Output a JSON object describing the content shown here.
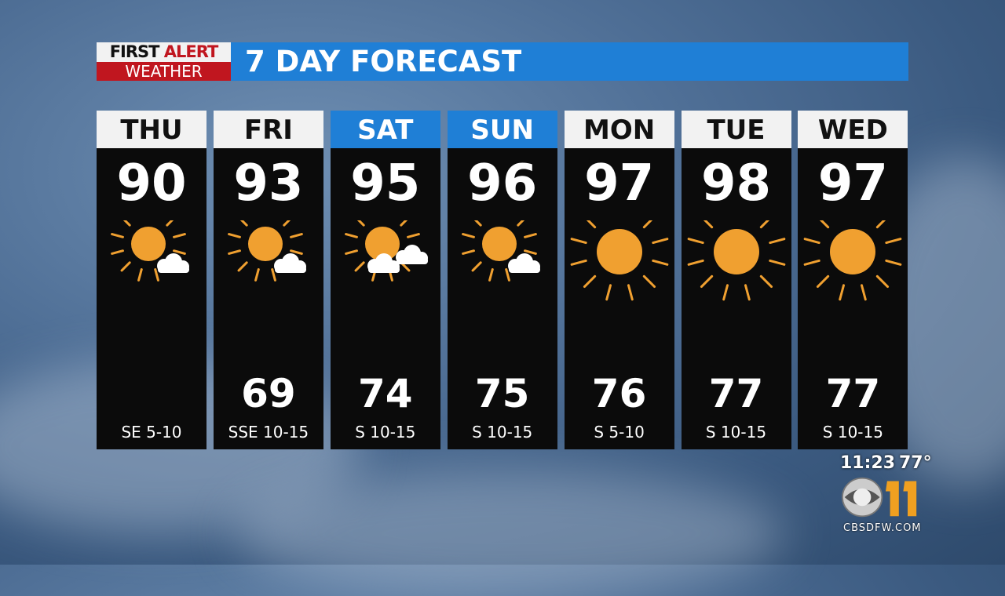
{
  "logo": {
    "line1a": "FIRST",
    "line1b": "ALERT",
    "line2": "WEATHER"
  },
  "title": "7 DAY FORECAST",
  "days": [
    {
      "day": "THU",
      "high": "90",
      "low": "",
      "wind": "SE 5-10",
      "icon": "sun-cloud-icon",
      "weekend": false
    },
    {
      "day": "FRI",
      "high": "93",
      "low": "69",
      "wind": "SSE 10-15",
      "icon": "sun-cloud-icon",
      "weekend": false
    },
    {
      "day": "SAT",
      "high": "95",
      "low": "74",
      "wind": "S 10-15",
      "icon": "sun-two-clouds-icon",
      "weekend": true
    },
    {
      "day": "SUN",
      "high": "96",
      "low": "75",
      "wind": "S 10-15",
      "icon": "sun-cloud-icon",
      "weekend": true
    },
    {
      "day": "MON",
      "high": "97",
      "low": "76",
      "wind": "S 5-10",
      "icon": "sun-icon",
      "weekend": false
    },
    {
      "day": "TUE",
      "high": "98",
      "low": "77",
      "wind": "S 10-15",
      "icon": "sun-icon",
      "weekend": false
    },
    {
      "day": "WED",
      "high": "97",
      "low": "77",
      "wind": "S 10-15",
      "icon": "sun-icon",
      "weekend": false
    }
  ],
  "station": {
    "time": "11:23",
    "temp": "77°",
    "url": "CBSDFW.COM",
    "network_logo": "CBS 11"
  },
  "colors": {
    "accent_blue": "#1f7fd6",
    "alert_red": "#c0161f",
    "sun": "#f0a030"
  }
}
